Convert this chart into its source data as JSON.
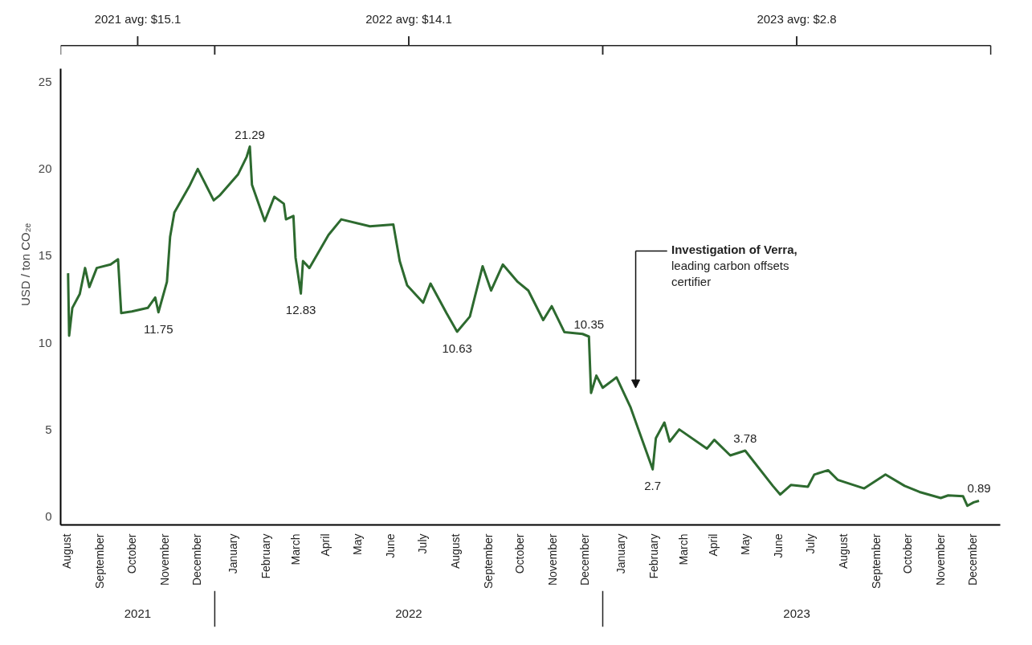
{
  "chart_data": {
    "type": "line",
    "ylabel": "USD / ton CO₂ₑ",
    "x": [
      "2021-08-16",
      "2021-08-17",
      "2021-08-20",
      "2021-08-27",
      "2021-09-01",
      "2021-09-05",
      "2021-09-12",
      "2021-09-25",
      "2021-10-02",
      "2021-10-05",
      "2021-10-15",
      "2021-10-30",
      "2021-11-06",
      "2021-11-09",
      "2021-11-17",
      "2021-11-20",
      "2021-11-24",
      "2021-12-08",
      "2021-12-16",
      "2021-12-31",
      "2022-01-06",
      "2022-01-23",
      "2022-01-31",
      "2022-02-03",
      "2022-02-05",
      "2022-02-17",
      "2022-02-26",
      "2022-03-07",
      "2022-03-09",
      "2022-03-16",
      "2022-03-18",
      "2022-03-23",
      "2022-03-25",
      "2022-03-31",
      "2022-04-18",
      "2022-04-30",
      "2022-05-27",
      "2022-06-18",
      "2022-06-24",
      "2022-07-01",
      "2022-07-16",
      "2022-07-23",
      "2022-08-07",
      "2022-08-17",
      "2022-08-29",
      "2022-09-10",
      "2022-09-18",
      "2022-09-29",
      "2022-10-13",
      "2022-10-23",
      "2022-11-06",
      "2022-11-14",
      "2022-11-26",
      "2022-12-13",
      "2022-12-19",
      "2022-12-21",
      "2022-12-26",
      "2023-01-01",
      "2023-01-14",
      "2023-01-27",
      "2023-02-03",
      "2023-02-17",
      "2023-02-20",
      "2023-02-28",
      "2023-03-05",
      "2023-03-14",
      "2023-04-09",
      "2023-04-16",
      "2023-05-01",
      "2023-05-15",
      "2023-06-10",
      "2023-06-17",
      "2023-06-27",
      "2023-07-13",
      "2023-07-19",
      "2023-08-01",
      "2023-08-10",
      "2023-09-04",
      "2023-09-24",
      "2023-10-12",
      "2023-10-26",
      "2023-11-15",
      "2023-11-22",
      "2023-12-06",
      "2023-12-10",
      "2023-12-16",
      "2023-12-21"
    ],
    "values": [
      14.0,
      10.4,
      12.0,
      12.8,
      14.3,
      13.2,
      14.3,
      14.5,
      14.8,
      11.7,
      11.8,
      12.0,
      12.6,
      11.75,
      13.5,
      16.1,
      17.5,
      19.0,
      20.0,
      18.2,
      18.5,
      19.7,
      20.7,
      21.29,
      19.1,
      17.0,
      18.4,
      18.0,
      17.1,
      17.3,
      14.9,
      12.83,
      14.7,
      14.3,
      16.2,
      17.1,
      16.7,
      16.8,
      14.7,
      13.3,
      12.3,
      13.4,
      11.7,
      10.63,
      11.5,
      14.4,
      13.0,
      14.5,
      13.5,
      13.0,
      11.3,
      12.1,
      10.6,
      10.5,
      10.35,
      7.1,
      8.1,
      7.4,
      8.0,
      6.3,
      5.1,
      2.7,
      4.5,
      5.4,
      4.3,
      5.0,
      3.9,
      4.4,
      3.5,
      3.78,
      1.75,
      1.25,
      1.8,
      1.7,
      2.4,
      2.65,
      2.1,
      1.6,
      2.4,
      1.75,
      1.4,
      1.05,
      1.2,
      1.15,
      0.6,
      0.8,
      0.89
    ],
    "color": "#2d6a2f",
    "grid": false,
    "line_style": "solid",
    "marker": "none",
    "xlim": [
      "2021-08-09",
      "2024-01-10"
    ],
    "ylim": [
      -0.5,
      25.8
    ],
    "yticks": [
      0,
      5,
      10,
      15,
      20,
      25
    ],
    "xticks": [
      {
        "value": "2021-08-15",
        "label": "August"
      },
      {
        "value": "2021-09-15",
        "label": "September"
      },
      {
        "value": "2021-10-15",
        "label": "October"
      },
      {
        "value": "2021-11-15",
        "label": "November"
      },
      {
        "value": "2021-12-15",
        "label": "December"
      },
      {
        "value": "2022-01-18",
        "label": "January"
      },
      {
        "value": "2022-02-18",
        "label": "February"
      },
      {
        "value": "2022-03-18",
        "label": "March"
      },
      {
        "value": "2022-04-15",
        "label": "April"
      },
      {
        "value": "2022-05-15",
        "label": "May"
      },
      {
        "value": "2022-06-15",
        "label": "June"
      },
      {
        "value": "2022-07-15",
        "label": "July"
      },
      {
        "value": "2022-08-15",
        "label": "August"
      },
      {
        "value": "2022-09-15",
        "label": "September"
      },
      {
        "value": "2022-10-15",
        "label": "October"
      },
      {
        "value": "2022-11-15",
        "label": "November"
      },
      {
        "value": "2022-12-15",
        "label": "December"
      },
      {
        "value": "2023-01-18",
        "label": "January"
      },
      {
        "value": "2023-02-18",
        "label": "February"
      },
      {
        "value": "2023-03-18",
        "label": "March"
      },
      {
        "value": "2023-04-15",
        "label": "April"
      },
      {
        "value": "2023-05-15",
        "label": "May"
      },
      {
        "value": "2023-06-15",
        "label": "June"
      },
      {
        "value": "2023-07-15",
        "label": "July"
      },
      {
        "value": "2023-08-15",
        "label": "August"
      },
      {
        "value": "2023-09-15",
        "label": "September"
      },
      {
        "value": "2023-10-15",
        "label": "October"
      },
      {
        "value": "2023-11-15",
        "label": "November"
      },
      {
        "value": "2023-12-15",
        "label": "December"
      }
    ],
    "annotations": [
      "2021 avg: $15.1",
      "2022 avg: $14.1",
      "2023 avg: $2.8",
      "2021",
      "2022",
      "2023",
      {
        "text": "21.29",
        "x": "2022-02-03",
        "y": 21.29
      },
      {
        "text": "11.75",
        "x": "2021-11-09",
        "y": 11.75
      },
      {
        "text": "12.83",
        "x": "2022-03-23",
        "y": 12.83
      },
      {
        "text": "10.63",
        "x": "2022-08-17",
        "y": 10.63
      },
      {
        "text": "10.35",
        "x": "2022-12-19",
        "y": 10.35
      },
      {
        "text": "2.7",
        "x": "2023-02-17",
        "y": 2.7
      },
      {
        "text": "3.78",
        "x": "2023-05-15",
        "y": 3.78
      },
      {
        "text": "0.89",
        "x": "2023-12-21",
        "y": 0.89
      },
      "Investigation of Verra, leading carbon offsets certifier"
    ]
  }
}
